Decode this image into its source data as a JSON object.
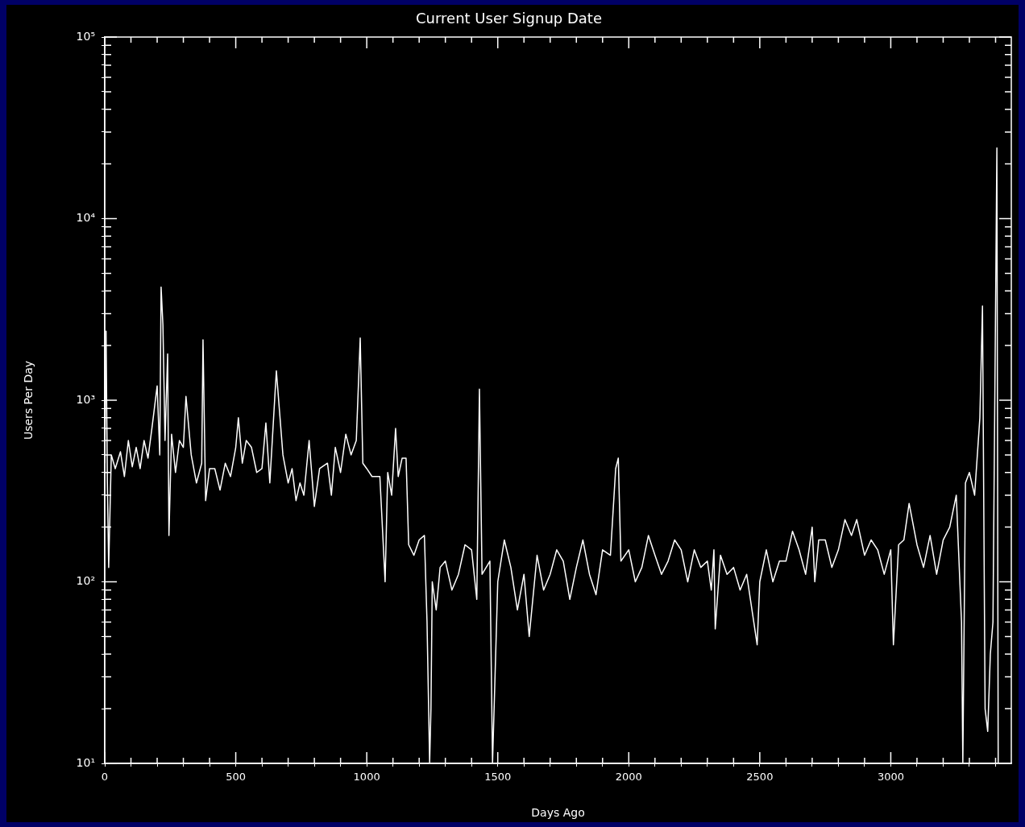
{
  "chart_data": {
    "type": "line",
    "title": "Current User Signup Date",
    "xlabel": "Days Ago",
    "ylabel": "Users Per Day",
    "log": true,
    "grid": false,
    "x": [
      0,
      5,
      10,
      15,
      25,
      40,
      60,
      75,
      90,
      105,
      120,
      135,
      150,
      165,
      180,
      200,
      210,
      215,
      222,
      230,
      240,
      245,
      255,
      270,
      285,
      300,
      310,
      330,
      350,
      370,
      375,
      385,
      400,
      420,
      440,
      460,
      480,
      500,
      510,
      525,
      540,
      560,
      580,
      600,
      615,
      630,
      650,
      655,
      680,
      700,
      715,
      730,
      745,
      760,
      780,
      800,
      820,
      850,
      865,
      880,
      900,
      920,
      940,
      960,
      975,
      985,
      1000,
      1020,
      1050,
      1070,
      1080,
      1095,
      1110,
      1120,
      1135,
      1150,
      1160,
      1180,
      1200,
      1220,
      1230,
      1240,
      1245,
      1250,
      1265,
      1280,
      1300,
      1325,
      1350,
      1375,
      1400,
      1420,
      1430,
      1440,
      1470,
      1480,
      1500,
      1525,
      1550,
      1575,
      1600,
      1620,
      1650,
      1675,
      1700,
      1725,
      1750,
      1775,
      1800,
      1825,
      1850,
      1875,
      1900,
      1930,
      1950,
      1960,
      1970,
      2000,
      2025,
      2050,
      2075,
      2100,
      2125,
      2150,
      2175,
      2200,
      2225,
      2250,
      2275,
      2300,
      2315,
      2325,
      2330,
      2350,
      2375,
      2400,
      2425,
      2450,
      2490,
      2500,
      2525,
      2550,
      2575,
      2600,
      2625,
      2650,
      2675,
      2700,
      2710,
      2725,
      2750,
      2775,
      2800,
      2825,
      2850,
      2870,
      2900,
      2925,
      2950,
      2975,
      3000,
      3010,
      3030,
      3050,
      3070,
      3100,
      3125,
      3150,
      3175,
      3200,
      3225,
      3250,
      3270,
      3275,
      3285,
      3300,
      3320,
      3340,
      3350,
      3360,
      3370,
      3380,
      3390,
      3405,
      3410
    ],
    "values": [
      450,
      2400,
      350,
      120,
      500,
      420,
      520,
      380,
      600,
      430,
      550,
      420,
      600,
      480,
      700,
      1200,
      500,
      4200,
      2600,
      600,
      1800,
      180,
      650,
      400,
      600,
      550,
      1050,
      500,
      350,
      450,
      2150,
      280,
      420,
      420,
      320,
      450,
      380,
      550,
      800,
      450,
      600,
      550,
      400,
      420,
      750,
      350,
      1100,
      1450,
      500,
      350,
      420,
      280,
      350,
      300,
      600,
      260,
      420,
      450,
      300,
      550,
      400,
      650,
      500,
      600,
      2200,
      450,
      420,
      380,
      380,
      100,
      400,
      300,
      700,
      380,
      480,
      480,
      160,
      140,
      170,
      180,
      60,
      10,
      20,
      100,
      70,
      120,
      130,
      90,
      110,
      160,
      150,
      80,
      1150,
      110,
      130,
      10,
      100,
      170,
      120,
      70,
      110,
      50,
      140,
      90,
      110,
      150,
      130,
      80,
      120,
      170,
      110,
      85,
      150,
      140,
      420,
      480,
      130,
      150,
      100,
      120,
      180,
      140,
      110,
      130,
      170,
      150,
      100,
      150,
      120,
      130,
      90,
      150,
      55,
      140,
      110,
      120,
      90,
      110,
      45,
      100,
      150,
      100,
      130,
      130,
      190,
      150,
      110,
      200,
      100,
      170,
      170,
      120,
      150,
      220,
      180,
      220,
      140,
      170,
      150,
      110,
      150,
      45,
      160,
      170,
      270,
      160,
      120,
      180,
      110,
      170,
      200,
      300,
      60,
      10,
      350,
      400,
      300,
      800,
      3300,
      20,
      15,
      40,
      60,
      24500,
      10
    ],
    "color": "#ffffff",
    "xlim": [
      0,
      3460
    ],
    "xticks": [
      0,
      {
        "value": 100,
        "label": null
      },
      {
        "value": 200,
        "label": null
      },
      {
        "value": 300,
        "label": null
      },
      {
        "value": 400,
        "label": null
      },
      500,
      {
        "value": 600,
        "label": null
      },
      {
        "value": 700,
        "label": null
      },
      {
        "value": 800,
        "label": null
      },
      {
        "value": 900,
        "label": null
      },
      1000,
      {
        "value": 1100,
        "label": null
      },
      {
        "value": 1200,
        "label": null
      },
      {
        "value": 1300,
        "label": null
      },
      {
        "value": 1400,
        "label": null
      },
      1500,
      {
        "value": 1600,
        "label": null
      },
      {
        "value": 1700,
        "label": null
      },
      {
        "value": 1800,
        "label": null
      },
      {
        "value": 1900,
        "label": null
      },
      2000,
      {
        "value": 2100,
        "label": null
      },
      {
        "value": 2200,
        "label": null
      },
      {
        "value": 2300,
        "label": null
      },
      {
        "value": 2400,
        "label": null
      },
      2500,
      {
        "value": 2600,
        "label": null
      },
      {
        "value": 2700,
        "label": null
      },
      {
        "value": 2800,
        "label": null
      },
      {
        "value": 2900,
        "label": null
      },
      3000,
      {
        "value": 3100,
        "label": null
      },
      {
        "value": 3200,
        "label": null
      },
      {
        "value": 3300,
        "label": null
      },
      {
        "value": 3400,
        "label": null
      }
    ],
    "ylim": [
      10,
      100000
    ],
    "yticks": [
      {
        "value": 10,
        "label": "10¹"
      },
      {
        "value": 20,
        "label": null
      },
      {
        "value": 30,
        "label": null
      },
      {
        "value": 40,
        "label": null
      },
      {
        "value": 50,
        "label": null
      },
      {
        "value": 60,
        "label": null
      },
      {
        "value": 70,
        "label": null
      },
      {
        "value": 80,
        "label": null
      },
      {
        "value": 90,
        "label": null
      },
      {
        "value": 100,
        "label": "10²"
      },
      {
        "value": 200,
        "label": null
      },
      {
        "value": 300,
        "label": null
      },
      {
        "value": 400,
        "label": null
      },
      {
        "value": 500,
        "label": null
      },
      {
        "value": 600,
        "label": null
      },
      {
        "value": 700,
        "label": null
      },
      {
        "value": 800,
        "label": null
      },
      {
        "value": 900,
        "label": null
      },
      {
        "value": 1000,
        "label": "10³"
      },
      {
        "value": 2000,
        "label": null
      },
      {
        "value": 3000,
        "label": null
      },
      {
        "value": 4000,
        "label": null
      },
      {
        "value": 5000,
        "label": null
      },
      {
        "value": 6000,
        "label": null
      },
      {
        "value": 7000,
        "label": null
      },
      {
        "value": 8000,
        "label": null
      },
      {
        "value": 9000,
        "label": null
      },
      {
        "value": 10000,
        "label": "10⁴"
      },
      {
        "value": 20000,
        "label": null
      },
      {
        "value": 30000,
        "label": null
      },
      {
        "value": 40000,
        "label": null
      },
      {
        "value": 50000,
        "label": null
      },
      {
        "value": 60000,
        "label": null
      },
      {
        "value": 70000,
        "label": null
      },
      {
        "value": 80000,
        "label": null
      },
      {
        "value": 90000,
        "label": null
      },
      {
        "value": 100000,
        "label": "10⁵"
      }
    ]
  }
}
